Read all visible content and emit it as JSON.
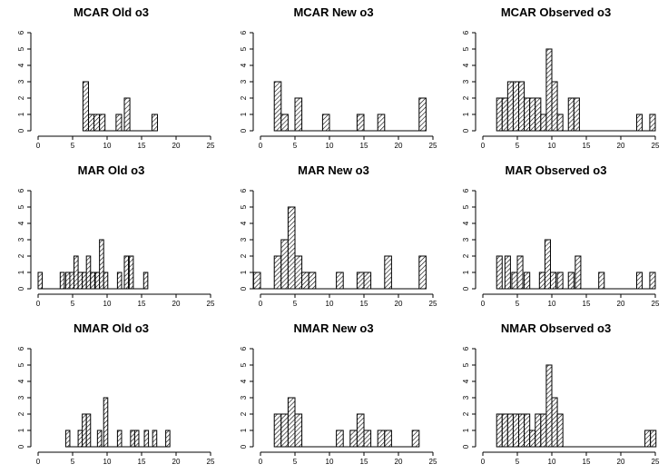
{
  "chart_data": [
    {
      "type": "bar",
      "title": "MCAR Old o3",
      "xlim": [
        0,
        25
      ],
      "ylim": [
        0,
        6
      ],
      "x_ticks": [
        0,
        5,
        10,
        15,
        20,
        25
      ],
      "y_ticks": [
        0,
        1,
        2,
        3,
        4,
        5,
        6
      ],
      "bin_width": 0.8,
      "bins": [
        {
          "x": 6.5,
          "count": 3
        },
        {
          "x": 7.3,
          "count": 1
        },
        {
          "x": 8.1,
          "count": 1
        },
        {
          "x": 8.9,
          "count": 1
        },
        {
          "x": 11.3,
          "count": 1
        },
        {
          "x": 12.5,
          "count": 2
        },
        {
          "x": 16.5,
          "count": 1
        }
      ]
    },
    {
      "type": "bar",
      "title": "MCAR New o3",
      "xlim": [
        0,
        25
      ],
      "ylim": [
        0,
        6
      ],
      "x_ticks": [
        0,
        5,
        10,
        15,
        20,
        25
      ],
      "y_ticks": [
        0,
        1,
        2,
        3,
        4,
        5,
        6
      ],
      "bin_width": 1,
      "bins": [
        {
          "x": 2,
          "count": 3
        },
        {
          "x": 3,
          "count": 1
        },
        {
          "x": 5,
          "count": 2
        },
        {
          "x": 9,
          "count": 1
        },
        {
          "x": 14,
          "count": 1
        },
        {
          "x": 17,
          "count": 1
        },
        {
          "x": 23,
          "count": 2
        }
      ]
    },
    {
      "type": "bar",
      "title": "MCAR Observed o3",
      "xlim": [
        0,
        25
      ],
      "ylim": [
        0,
        6
      ],
      "x_ticks": [
        0,
        5,
        10,
        15,
        20,
        25
      ],
      "y_ticks": [
        0,
        1,
        2,
        3,
        4,
        5,
        6
      ],
      "bin_width": 0.8,
      "bins": [
        {
          "x": 2,
          "count": 2
        },
        {
          "x": 2.8,
          "count": 2
        },
        {
          "x": 3.6,
          "count": 3
        },
        {
          "x": 4.4,
          "count": 3
        },
        {
          "x": 5.2,
          "count": 3
        },
        {
          "x": 6,
          "count": 2
        },
        {
          "x": 6.8,
          "count": 2
        },
        {
          "x": 7.6,
          "count": 2
        },
        {
          "x": 8.4,
          "count": 1
        },
        {
          "x": 9.2,
          "count": 5
        },
        {
          "x": 10,
          "count": 3
        },
        {
          "x": 10.8,
          "count": 1
        },
        {
          "x": 12.4,
          "count": 2
        },
        {
          "x": 13.2,
          "count": 2
        },
        {
          "x": 22.3,
          "count": 1
        },
        {
          "x": 24.2,
          "count": 1
        }
      ]
    },
    {
      "type": "bar",
      "title": "MAR Old o3",
      "xlim": [
        0,
        25
      ],
      "ylim": [
        0,
        6
      ],
      "x_ticks": [
        0,
        5,
        10,
        15,
        20,
        25
      ],
      "y_ticks": [
        0,
        1,
        2,
        3,
        4,
        5,
        6
      ],
      "bin_width": 0.6,
      "bins": [
        {
          "x": 0,
          "count": 1
        },
        {
          "x": 3.2,
          "count": 1
        },
        {
          "x": 4,
          "count": 1
        },
        {
          "x": 4.6,
          "count": 1
        },
        {
          "x": 5.2,
          "count": 2
        },
        {
          "x": 5.8,
          "count": 1
        },
        {
          "x": 6.4,
          "count": 1
        },
        {
          "x": 7,
          "count": 2
        },
        {
          "x": 7.6,
          "count": 1
        },
        {
          "x": 8.3,
          "count": 1
        },
        {
          "x": 8.9,
          "count": 3
        },
        {
          "x": 9.5,
          "count": 1
        },
        {
          "x": 11.5,
          "count": 1
        },
        {
          "x": 12.5,
          "count": 2
        },
        {
          "x": 13.2,
          "count": 2
        },
        {
          "x": 15.3,
          "count": 1
        }
      ]
    },
    {
      "type": "bar",
      "title": "MAR New o3",
      "xlim": [
        0,
        25
      ],
      "ylim": [
        0,
        6
      ],
      "x_ticks": [
        0,
        5,
        10,
        15,
        20,
        25
      ],
      "y_ticks": [
        0,
        1,
        2,
        3,
        4,
        5,
        6
      ],
      "bin_width": 1,
      "bins": [
        {
          "x": -1,
          "count": 1
        },
        {
          "x": 2,
          "count": 2
        },
        {
          "x": 3,
          "count": 3
        },
        {
          "x": 4,
          "count": 5
        },
        {
          "x": 5,
          "count": 2
        },
        {
          "x": 6,
          "count": 1
        },
        {
          "x": 7,
          "count": 1
        },
        {
          "x": 11,
          "count": 1
        },
        {
          "x": 14,
          "count": 1
        },
        {
          "x": 15,
          "count": 1
        },
        {
          "x": 18,
          "count": 2
        },
        {
          "x": 23,
          "count": 2
        }
      ]
    },
    {
      "type": "bar",
      "title": "MAR Observed o3",
      "xlim": [
        0,
        25
      ],
      "ylim": [
        0,
        6
      ],
      "x_ticks": [
        0,
        5,
        10,
        15,
        20,
        25
      ],
      "y_ticks": [
        0,
        1,
        2,
        3,
        4,
        5,
        6
      ],
      "bin_width": 0.8,
      "bins": [
        {
          "x": 2,
          "count": 2
        },
        {
          "x": 3.2,
          "count": 2
        },
        {
          "x": 4.2,
          "count": 1
        },
        {
          "x": 5,
          "count": 2
        },
        {
          "x": 6,
          "count": 1
        },
        {
          "x": 8.2,
          "count": 1
        },
        {
          "x": 9,
          "count": 3
        },
        {
          "x": 9.8,
          "count": 1
        },
        {
          "x": 10.8,
          "count": 1
        },
        {
          "x": 12.4,
          "count": 1
        },
        {
          "x": 13.4,
          "count": 2
        },
        {
          "x": 16.8,
          "count": 1
        },
        {
          "x": 22.3,
          "count": 1
        },
        {
          "x": 24.2,
          "count": 1
        }
      ]
    },
    {
      "type": "bar",
      "title": "NMAR Old o3",
      "xlim": [
        0,
        25
      ],
      "ylim": [
        0,
        6
      ],
      "x_ticks": [
        0,
        5,
        10,
        15,
        20,
        25
      ],
      "y_ticks": [
        0,
        1,
        2,
        3,
        4,
        5,
        6
      ],
      "bin_width": 0.6,
      "bins": [
        {
          "x": 4,
          "count": 1
        },
        {
          "x": 5.8,
          "count": 1
        },
        {
          "x": 6.4,
          "count": 2
        },
        {
          "x": 7,
          "count": 2
        },
        {
          "x": 8.6,
          "count": 1
        },
        {
          "x": 9.5,
          "count": 3
        },
        {
          "x": 11.5,
          "count": 1
        },
        {
          "x": 13.4,
          "count": 1
        },
        {
          "x": 14,
          "count": 1
        },
        {
          "x": 15.4,
          "count": 1
        },
        {
          "x": 16.6,
          "count": 1
        },
        {
          "x": 18.5,
          "count": 1
        }
      ]
    },
    {
      "type": "bar",
      "title": "NMAR New o3",
      "xlim": [
        0,
        25
      ],
      "ylim": [
        0,
        6
      ],
      "x_ticks": [
        0,
        5,
        10,
        15,
        20,
        25
      ],
      "y_ticks": [
        0,
        1,
        2,
        3,
        4,
        5,
        6
      ],
      "bin_width": 1,
      "bins": [
        {
          "x": 2,
          "count": 2
        },
        {
          "x": 3,
          "count": 2
        },
        {
          "x": 4,
          "count": 3
        },
        {
          "x": 5,
          "count": 2
        },
        {
          "x": 11,
          "count": 1
        },
        {
          "x": 13,
          "count": 1
        },
        {
          "x": 14,
          "count": 2
        },
        {
          "x": 15,
          "count": 1
        },
        {
          "x": 17,
          "count": 1
        },
        {
          "x": 18,
          "count": 1
        },
        {
          "x": 22,
          "count": 1
        }
      ]
    },
    {
      "type": "bar",
      "title": "NMAR Observed o3",
      "xlim": [
        0,
        25
      ],
      "ylim": [
        0,
        6
      ],
      "x_ticks": [
        0,
        5,
        10,
        15,
        20,
        25
      ],
      "y_ticks": [
        0,
        1,
        2,
        3,
        4,
        5,
        6
      ],
      "bin_width": 0.8,
      "bins": [
        {
          "x": 2,
          "count": 2
        },
        {
          "x": 2.8,
          "count": 2
        },
        {
          "x": 3.6,
          "count": 2
        },
        {
          "x": 4.4,
          "count": 2
        },
        {
          "x": 5.2,
          "count": 2
        },
        {
          "x": 6,
          "count": 2
        },
        {
          "x": 6.8,
          "count": 1
        },
        {
          "x": 7.6,
          "count": 2
        },
        {
          "x": 8.4,
          "count": 2
        },
        {
          "x": 9.2,
          "count": 5
        },
        {
          "x": 10,
          "count": 3
        },
        {
          "x": 10.8,
          "count": 2
        },
        {
          "x": 23.5,
          "count": 1
        },
        {
          "x": 24.3,
          "count": 1
        }
      ]
    }
  ]
}
